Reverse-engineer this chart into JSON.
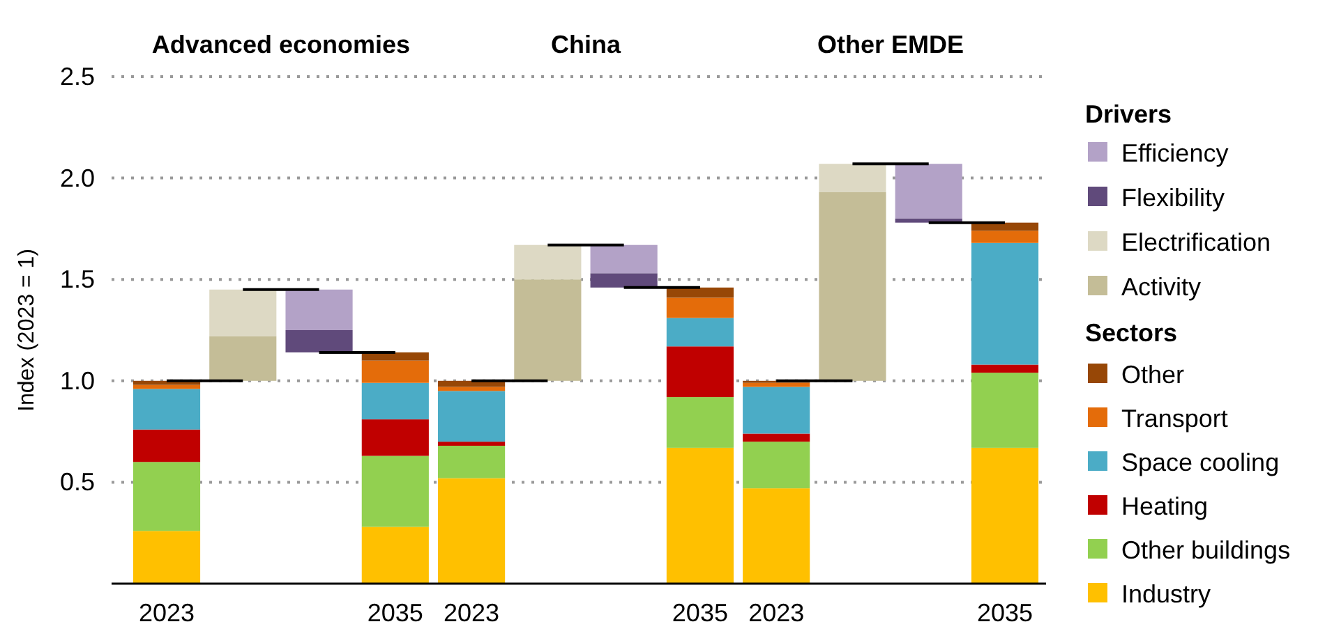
{
  "chart_data": {
    "type": "bar",
    "stacked": true,
    "ylabel": "Index (2023 = 1)",
    "legend_title": "Drivers",
    "annotations": [
      "Advanced economies",
      "China",
      "Other EMDE",
      "Sectors"
    ],
    "categories": [
      "2023",
      null,
      null,
      "2035",
      "2023",
      null,
      null,
      "2035",
      "2023",
      null,
      null,
      "2035"
    ],
    "series": [
      {
        "name": "Industry",
        "color": "#ffc000",
        "values": [
          0.26,
          null,
          null,
          0.28,
          0.52,
          null,
          null,
          0.67,
          0.47,
          null,
          null,
          0.67
        ]
      },
      {
        "name": "Other buildings",
        "color": "#92d050",
        "values": [
          0.34,
          null,
          null,
          0.35,
          0.16,
          null,
          null,
          0.25,
          0.23,
          null,
          null,
          0.37
        ]
      },
      {
        "name": "Heating",
        "color": "#c00000",
        "values": [
          0.16,
          null,
          null,
          0.18,
          0.02,
          null,
          null,
          0.25,
          0.04,
          null,
          null,
          0.04
        ]
      },
      {
        "name": "Space cooling",
        "color": "#4bacc6",
        "values": [
          0.2,
          null,
          null,
          0.18,
          0.25,
          null,
          null,
          0.14,
          0.23,
          null,
          null,
          0.6
        ]
      },
      {
        "name": "Transport",
        "color": "#e46c0a",
        "values": [
          0.02,
          null,
          null,
          0.11,
          0.02,
          null,
          null,
          0.1,
          0.02,
          null,
          null,
          0.06
        ]
      },
      {
        "name": "Other",
        "color": "#974706",
        "values": [
          0.02,
          null,
          null,
          0.04,
          0.03,
          null,
          null,
          0.05,
          0.01,
          null,
          null,
          0.04
        ]
      },
      {
        "name": "Activity",
        "color": "#c4bd97",
        "values": [
          null,
          0.22,
          null,
          null,
          null,
          0.5,
          null,
          null,
          null,
          0.93,
          null,
          null
        ],
        "base": [
          null,
          1.0,
          null,
          null,
          null,
          1.0,
          null,
          null,
          null,
          1.0,
          null,
          null
        ]
      },
      {
        "name": "Electrification",
        "color": "#ddd9c4",
        "values": [
          null,
          0.23,
          null,
          null,
          null,
          0.17,
          null,
          null,
          null,
          0.14,
          null,
          null
        ],
        "base": [
          null,
          1.22,
          null,
          null,
          null,
          1.5,
          null,
          null,
          null,
          1.93,
          null,
          null
        ]
      },
      {
        "name": "Efficiency",
        "color": "#b3a2c7",
        "values": [
          null,
          null,
          -0.2,
          null,
          null,
          null,
          -0.14,
          null,
          null,
          null,
          -0.27,
          null
        ],
        "base": [
          null,
          null,
          1.45,
          null,
          null,
          null,
          1.67,
          null,
          null,
          null,
          2.07,
          null
        ]
      },
      {
        "name": "Flexibility",
        "color": "#604a7b",
        "values": [
          null,
          null,
          -0.11,
          null,
          null,
          null,
          -0.07,
          null,
          null,
          null,
          -0.02,
          null
        ],
        "base": [
          null,
          null,
          1.25,
          null,
          null,
          null,
          1.53,
          null,
          null,
          null,
          1.8,
          null
        ]
      }
    ],
    "ylim": [
      0,
      2.5
    ],
    "yticks": [
      {
        "value": 0,
        "label": null
      },
      0.5,
      {
        "value": 1,
        "label": "1.0"
      },
      1.5,
      {
        "value": 2,
        "label": "2.0"
      },
      2.5
    ],
    "grid": "y",
    "legend": "right"
  }
}
